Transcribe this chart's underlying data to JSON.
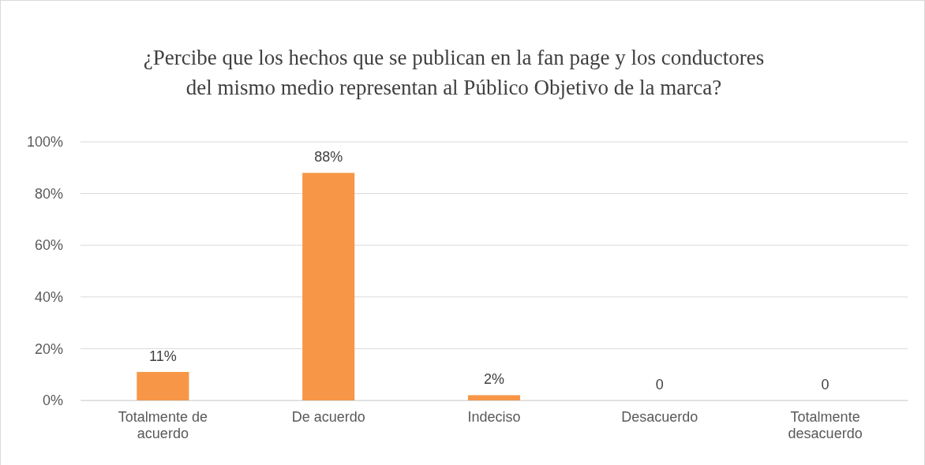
{
  "chart_data": {
    "type": "bar",
    "title": "¿Percibe que los hechos que se publican en la fan page y los conductores del mismo medio representan al Público Objetivo de la marca?",
    "categories": [
      "Totalmente de acuerdo",
      "De acuerdo",
      "Indeciso",
      "Desacuerdo",
      "Totalmente desacuerdo"
    ],
    "values": [
      11,
      88,
      2,
      0,
      0
    ],
    "value_labels": [
      "11%",
      "88%",
      "2%",
      "0",
      "0"
    ],
    "color": "#f79646",
    "ylim": [
      0,
      100
    ],
    "yticks": [
      {
        "value": 0,
        "label": "0%"
      },
      {
        "value": 20,
        "label": "20%"
      },
      {
        "value": 40,
        "label": "40%"
      },
      {
        "value": 60,
        "label": "60%"
      },
      {
        "value": 80,
        "label": "80%"
      },
      {
        "value": 100,
        "label": "100%"
      }
    ],
    "grid": "y"
  }
}
